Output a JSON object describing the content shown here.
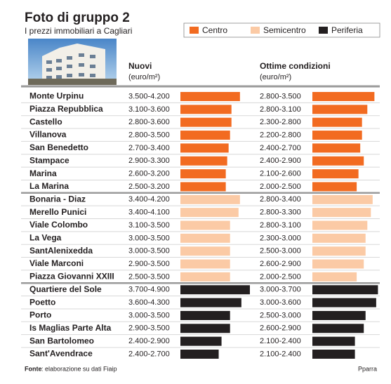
{
  "chart_data": {
    "type": "range-table",
    "title": "Foto di gruppo 2",
    "subtitle": "I prezzi immobiliari a Cagliari",
    "columns": [
      {
        "title": "Nuovi",
        "unit": "(euro/m²)",
        "xlim": [
          0,
          5000
        ]
      },
      {
        "title": "Ottime condizioni",
        "unit": "(euro/m²)",
        "xlim": [
          0,
          4000
        ]
      }
    ],
    "groups": [
      {
        "name": "Centro",
        "color": "#f26b21",
        "rows": [
          {
            "name": "Monte Urpinu",
            "nuovi": {
              "label": "3.500-4.200",
              "max": 4200
            },
            "ottime": {
              "label": "2.800-3.500",
              "max": 3500
            }
          },
          {
            "name": "Piazza Repubblica",
            "nuovi": {
              "label": "3.100-3.600",
              "max": 3600
            },
            "ottime": {
              "label": "2.800-3.100",
              "max": 3100
            }
          },
          {
            "name": "Castello",
            "nuovi": {
              "label": "2.800-3.600",
              "max": 3600
            },
            "ottime": {
              "label": "2.300-2.800",
              "max": 2800
            }
          },
          {
            "name": "Villanova",
            "nuovi": {
              "label": "2.800-3.500",
              "max": 3500
            },
            "ottime": {
              "label": "2.200-2.800",
              "max": 2800
            }
          },
          {
            "name": "San Benedetto",
            "nuovi": {
              "label": "2.700-3.400",
              "max": 3400
            },
            "ottime": {
              "label": "2.400-2.700",
              "max": 2700
            }
          },
          {
            "name": "Stampace",
            "nuovi": {
              "label": "2.900-3.300",
              "max": 3300
            },
            "ottime": {
              "label": "2.400-2.900",
              "max": 2900
            }
          },
          {
            "name": "Marina",
            "nuovi": {
              "label": "2.600-3.200",
              "max": 3200
            },
            "ottime": {
              "label": "2.100-2.600",
              "max": 2600
            }
          },
          {
            "name": "La Marina",
            "nuovi": {
              "label": "2.500-3.200",
              "max": 3200
            },
            "ottime": {
              "label": "2.000-2.500",
              "max": 2500
            }
          }
        ]
      },
      {
        "name": "Semicentro",
        "color": "#fbcaa5",
        "rows": [
          {
            "name": "Bonaria - Diaz",
            "nuovi": {
              "label": "3.400-4.200",
              "max": 4200
            },
            "ottime": {
              "label": "2.800-3.400",
              "max": 3400
            }
          },
          {
            "name": "Merello Punici",
            "nuovi": {
              "label": "3.400-4.100",
              "max": 4100
            },
            "ottime": {
              "label": "2.800-3.300",
              "max": 3300
            }
          },
          {
            "name": "Viale Colombo",
            "nuovi": {
              "label": "3.100-3.500",
              "max": 3500
            },
            "ottime": {
              "label": "2.800-3.100",
              "max": 3100
            }
          },
          {
            "name": "La Vega",
            "nuovi": {
              "label": "3.000-3.500",
              "max": 3500
            },
            "ottime": {
              "label": "2.300-3.000",
              "max": 3000
            }
          },
          {
            "name": "SantAlenixedda",
            "nuovi": {
              "label": "3.000-3.500",
              "max": 3500
            },
            "ottime": {
              "label": "2.500-3.000",
              "max": 3000
            }
          },
          {
            "name": "Viale Marconi",
            "nuovi": {
              "label": "2.900-3.500",
              "max": 3500
            },
            "ottime": {
              "label": "2.600-2.900",
              "max": 2900
            }
          },
          {
            "name": "Piazza Giovanni XXIII",
            "nuovi": {
              "label": "2.500-3.500",
              "max": 3500
            },
            "ottime": {
              "label": "2.000-2.500",
              "max": 2500
            }
          }
        ]
      },
      {
        "name": "Periferia",
        "color": "#231f20",
        "rows": [
          {
            "name": "Quartiere del Sole",
            "nuovi": {
              "label": "3.700-4.900",
              "max": 4900
            },
            "ottime": {
              "label": "3.000-3.700",
              "max": 3700
            }
          },
          {
            "name": "Poetto",
            "nuovi": {
              "label": "3.600-4.300",
              "max": 4300
            },
            "ottime": {
              "label": "3.000-3.600",
              "max": 3600
            }
          },
          {
            "name": "Porto",
            "nuovi": {
              "label": "3.000-3.500",
              "max": 3500
            },
            "ottime": {
              "label": "2.500-3.000",
              "max": 3000
            }
          },
          {
            "name": "Is Maglias Parte Alta",
            "nuovi": {
              "label": "2.900-3.500",
              "max": 3500
            },
            "ottime": {
              "label": "2.600-2.900",
              "max": 2900
            }
          },
          {
            "name": "San Bartolomeo",
            "nuovi": {
              "label": "2.400-2.900",
              "max": 2900
            },
            "ottime": {
              "label": "2.100-2.400",
              "max": 2400
            }
          },
          {
            "name": "Sant'Avendrace",
            "nuovi": {
              "label": "2.400-2.700",
              "max": 2700
            },
            "ottime": {
              "label": "2.100-2.400",
              "max": 2400
            }
          }
        ]
      }
    ],
    "source_label": "Fonte",
    "source": ": elaborazione su dati Fiaip",
    "credit": "Pparra"
  }
}
